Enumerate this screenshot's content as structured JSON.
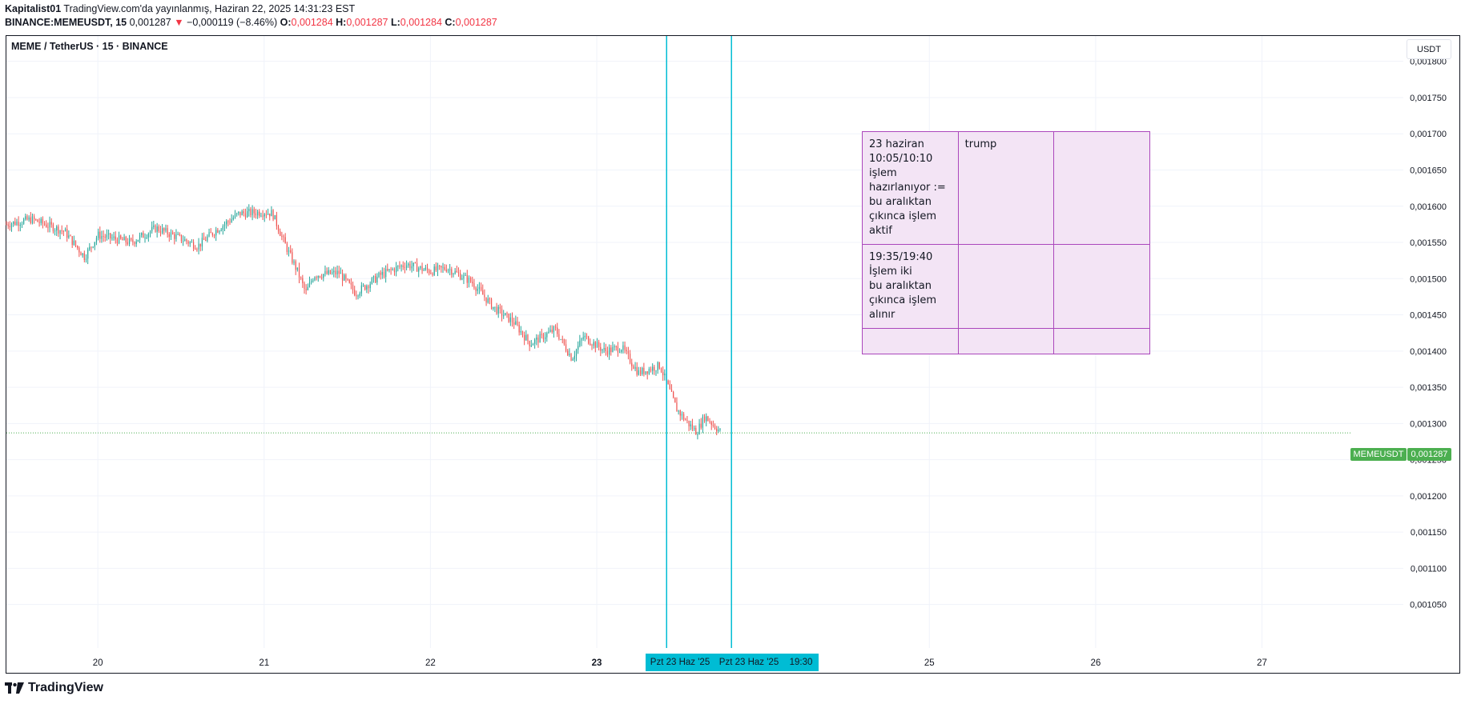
{
  "header": {
    "author": "Kapitalist01",
    "published": "TradingView.com'da yayınlanmış, Haziran 22, 2025 14:31:23 EST",
    "symbol_line": "BINANCE:MEMEUSDT, 15",
    "last": "0,001287",
    "arrow": "▼",
    "change": "−0,000119 (−8.46%)",
    "o_label": "O:",
    "o_val": "0,001284",
    "h_label": "H:",
    "h_val": "0,001287",
    "l_label": "L:",
    "l_val": "0,001284",
    "c_label": "C:",
    "c_val": "0,001287"
  },
  "legend": {
    "title": "MEME / TetherUS · 15 · BINANCE"
  },
  "unit": "USDT",
  "price_labels": {
    "symbol": "MEMEUSDT",
    "value": "0,001287"
  },
  "time_tags": {
    "left": "Pzt 23 Haz '25",
    "right": "Pzt 23 Haz '25",
    "time": "19:30"
  },
  "notes": {
    "r1c1": "23 haziran\n10:05/10:10\nişlem\nhazırlanıyor :=\nbu aralıktan\nçıkınca işlem\naktif",
    "r1c2": "trump",
    "r2c1": "19:35/19:40\nİşlem iki\nbu aralıktan\nçıkınca işlem\nalınır"
  },
  "footer": {
    "brand": "TradingView"
  },
  "colors": {
    "up": "#26a69a",
    "down": "#ef5350",
    "grid": "#f0f3fa",
    "vline": "#00bcd4",
    "last_price": "#4caf50",
    "note_fill": "#f3e4f5",
    "note_border": "#ab47bc"
  },
  "chart_data": {
    "type": "candlestick",
    "interval": "15",
    "x_axis": {
      "range": [
        19.45,
        27.85
      ],
      "ticks": [
        {
          "value": 20,
          "label": "20"
        },
        {
          "value": 21,
          "label": "21"
        },
        {
          "value": 22,
          "label": "22"
        },
        {
          "value": 23,
          "label": "23"
        },
        {
          "value": 25,
          "label": "25"
        },
        {
          "value": 26,
          "label": "26"
        },
        {
          "value": 27,
          "label": "27"
        }
      ]
    },
    "y_axis": {
      "range": [
        0.00099,
        0.001835
      ],
      "ticks": [
        "0,001050",
        "0,001100",
        "0,001150",
        "0,001200",
        "0,001250",
        "0,001300",
        "0,001350",
        "0,001400",
        "0,001450",
        "0,001500",
        "0,001550",
        "0,001600",
        "0,001650",
        "0,001700",
        "0,001750",
        "0,001800"
      ],
      "tick_values": [
        0.00105,
        0.0011,
        0.00115,
        0.0012,
        0.00125,
        0.0013,
        0.00135,
        0.0014,
        0.00145,
        0.0015,
        0.00155,
        0.0016,
        0.00165,
        0.0017,
        0.00175,
        0.0018
      ]
    },
    "last_price": 0.001287,
    "vertical_lines": [
      23.42,
      23.81
    ],
    "price_path": [
      [
        19.45,
        0.001575
      ],
      [
        19.6,
        0.001582
      ],
      [
        19.8,
        0.001565
      ],
      [
        19.92,
        0.00153
      ],
      [
        20.0,
        0.00156
      ],
      [
        20.2,
        0.00155
      ],
      [
        20.35,
        0.00157
      ],
      [
        20.6,
        0.001545
      ],
      [
        20.7,
        0.001565
      ],
      [
        20.85,
        0.00159
      ],
      [
        21.0,
        0.001592
      ],
      [
        21.05,
        0.00159
      ],
      [
        21.12,
        0.00155
      ],
      [
        21.2,
        0.00151
      ],
      [
        21.25,
        0.00148
      ],
      [
        21.3,
        0.001505
      ],
      [
        21.45,
        0.001508
      ],
      [
        21.55,
        0.00148
      ],
      [
        21.7,
        0.001505
      ],
      [
        21.85,
        0.00152
      ],
      [
        22.0,
        0.00151
      ],
      [
        22.1,
        0.001515
      ],
      [
        22.25,
        0.001495
      ],
      [
        22.38,
        0.00146
      ],
      [
        22.5,
        0.00144
      ],
      [
        22.6,
        0.00141
      ],
      [
        22.75,
        0.00143
      ],
      [
        22.85,
        0.00139
      ],
      [
        22.92,
        0.00142
      ],
      [
        23.05,
        0.0014
      ],
      [
        23.15,
        0.001405
      ],
      [
        23.25,
        0.00137
      ],
      [
        23.38,
        0.00138
      ],
      [
        23.48,
        0.00132
      ],
      [
        23.55,
        0.0013
      ],
      [
        23.6,
        0.001288
      ],
      [
        23.65,
        0.00131
      ],
      [
        23.75,
        0.001287
      ]
    ]
  }
}
